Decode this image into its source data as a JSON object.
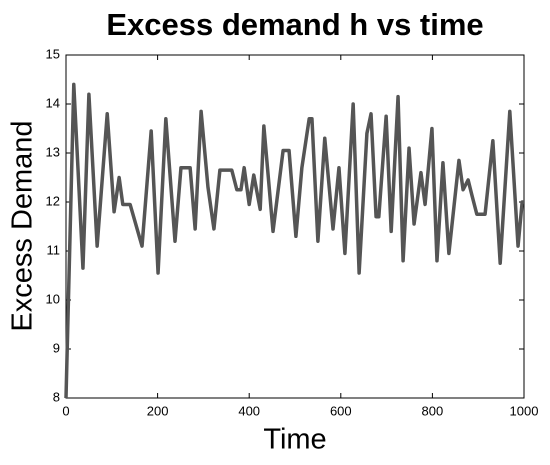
{
  "chart_data": {
    "type": "line",
    "title": "Excess demand h vs time",
    "x_label": "Time",
    "y_label": "Excess Demand",
    "xlim": [
      0,
      1000
    ],
    "xticks": [
      0,
      200,
      400,
      600,
      800,
      1000
    ],
    "ylim": [
      8,
      15
    ],
    "yticks": [
      8,
      9,
      10,
      11,
      12,
      13,
      14,
      15
    ],
    "series": [
      {
        "color": "#555555",
        "x": [
          0,
          17,
          37,
          50,
          68,
          90,
          105,
          116,
          124,
          140,
          166,
          186,
          201,
          218,
          238,
          251,
          271,
          282,
          295,
          310,
          323,
          336,
          362,
          373,
          382,
          389,
          400,
          410,
          424,
          432,
          452,
          474,
          487,
          502,
          515,
          531,
          537,
          550,
          565,
          583,
          596,
          609,
          627,
          640,
          657,
          666,
          677,
          683,
          699,
          710,
          725,
          736,
          749,
          760,
          775,
          784,
          799,
          810,
          823,
          836,
          858,
          867,
          878,
          886,
          897,
          915,
          932,
          948,
          969,
          987,
          996,
          1000
        ],
        "values": [
          8,
          14.4,
          10.65,
          14.2,
          11.1,
          13.8,
          11.8,
          12.5,
          11.95,
          11.95,
          11.1,
          13.45,
          10.55,
          13.7,
          11.2,
          12.7,
          12.7,
          11.45,
          13.85,
          12.3,
          11.45,
          12.65,
          12.65,
          12.25,
          12.25,
          12.7,
          11.95,
          12.55,
          11.85,
          13.55,
          11.4,
          13.05,
          13.05,
          11.3,
          12.7,
          13.7,
          13.7,
          11.2,
          13.3,
          11.45,
          12.7,
          10.95,
          14.0,
          10.55,
          13.4,
          13.8,
          11.7,
          11.7,
          13.75,
          11.4,
          14.15,
          10.8,
          13.1,
          11.55,
          12.6,
          11.95,
          13.5,
          10.8,
          12.8,
          10.95,
          12.85,
          12.25,
          12.45,
          12.15,
          11.75,
          11.75,
          13.25,
          10.75,
          13.85,
          11.1,
          12.0,
          12.0
        ]
      }
    ]
  }
}
